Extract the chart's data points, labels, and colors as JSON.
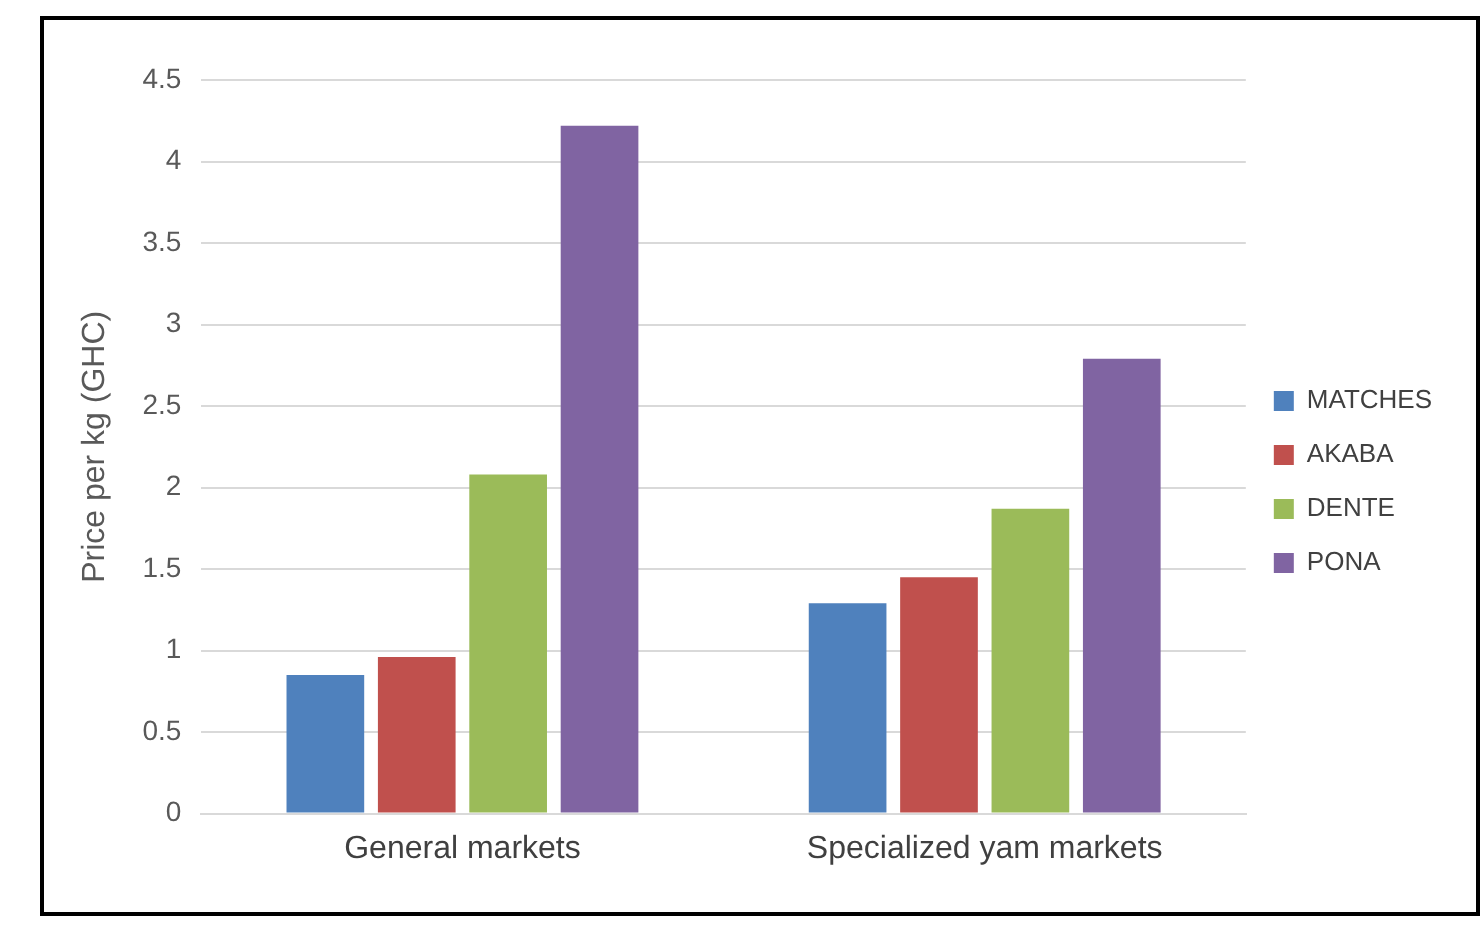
{
  "chart_data": {
    "type": "bar",
    "ylabel": "Price per kg (GHC)",
    "categories": [
      "General markets",
      "Specialized yam markets"
    ],
    "series": [
      {
        "name": "MATCHES",
        "color": "#4f81bd",
        "values": [
          0.85,
          1.29
        ]
      },
      {
        "name": "AKABA",
        "color": "#c0504d",
        "values": [
          0.96,
          1.45
        ]
      },
      {
        "name": "DENTE",
        "color": "#9bbb59",
        "values": [
          2.08,
          1.87
        ]
      },
      {
        "name": "PONA",
        "color": "#8064a2",
        "values": [
          4.22,
          2.79
        ]
      }
    ],
    "ylim": [
      0,
      4.5
    ],
    "yticks": [
      0,
      0.5,
      1,
      1.5,
      2,
      2.5,
      3,
      3.5,
      4,
      4.5
    ],
    "grid": "y",
    "legend": "right"
  }
}
